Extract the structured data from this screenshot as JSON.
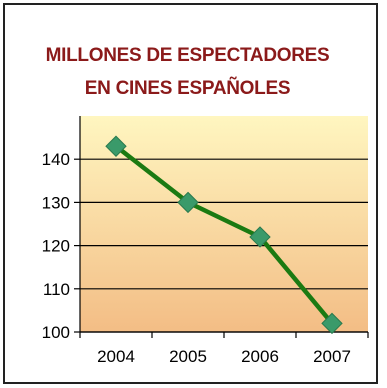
{
  "chart_data": {
    "type": "line",
    "title_lines": [
      "MILLONES DE ESPECTADORES",
      "EN CINES ESPAÑOLES"
    ],
    "categories": [
      "2004",
      "2005",
      "2006",
      "2007"
    ],
    "series": [
      {
        "values": [
          143,
          130,
          122,
          102
        ]
      }
    ],
    "ylim": [
      100,
      150
    ],
    "yticks": [
      100,
      110,
      120,
      130,
      140
    ],
    "grid": true,
    "legend": "none",
    "colors": {
      "line": "#1b7a12",
      "marker": "#3a9a6a",
      "title": "#8b1a1a",
      "bg_top": "#fff6c0",
      "bg_bottom": "#f3bd85"
    }
  }
}
